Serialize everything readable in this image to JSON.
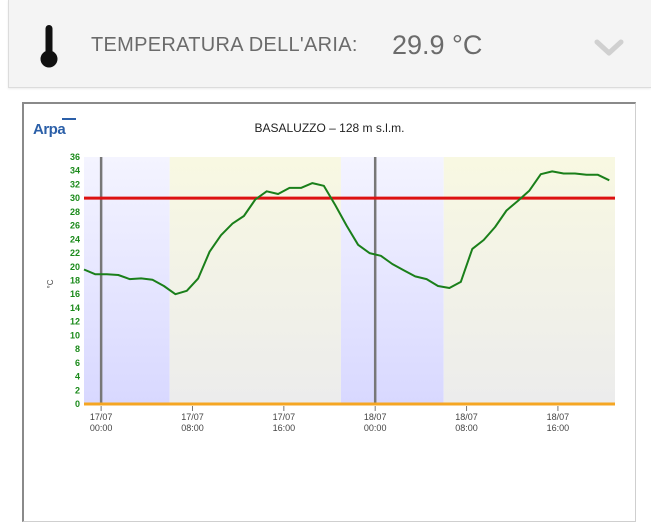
{
  "header": {
    "label": "TEMPERATURA DELL'ARIA:",
    "value": "29.9 °C",
    "thermometer_icon": "thermometer-icon",
    "expand_icon": "chevron-down-icon"
  },
  "logo": {
    "text": "Arpa"
  },
  "chart_data": {
    "type": "line",
    "title": "BASALUZZO – 128 m s.l.m.",
    "ylabel": "°C",
    "xlabel": "",
    "ylim": [
      0,
      36
    ],
    "yticks": [
      0,
      2,
      4,
      6,
      8,
      10,
      12,
      14,
      16,
      18,
      20,
      22,
      24,
      26,
      28,
      30,
      32,
      34,
      36
    ],
    "xlim": [
      -1.5,
      45
    ],
    "xticks": [
      {
        "x": 0,
        "line1": "17/07",
        "line2": "00:00"
      },
      {
        "x": 8,
        "line1": "17/07",
        "line2": "08:00"
      },
      {
        "x": 16,
        "line1": "17/07",
        "line2": "16:00"
      },
      {
        "x": 24,
        "line1": "18/07",
        "line2": "00:00"
      },
      {
        "x": 32,
        "line1": "18/07",
        "line2": "08:00"
      },
      {
        "x": 40,
        "line1": "18/07",
        "line2": "16:00"
      }
    ],
    "threshold": 30,
    "day_separators": [
      0,
      24
    ],
    "bands": [
      {
        "from": -1.5,
        "to": 6,
        "kind": "night"
      },
      {
        "from": 6,
        "to": 21,
        "kind": "day"
      },
      {
        "from": 21,
        "to": 30,
        "kind": "night"
      },
      {
        "from": 30,
        "to": 45,
        "kind": "day"
      }
    ],
    "series": [
      {
        "name": "",
        "x": [
          -1.5,
          -0.5,
          0.5,
          1.5,
          2.5,
          3.5,
          4.5,
          5.5,
          6.5,
          7.5,
          8.5,
          9.5,
          10.5,
          11.5,
          12.5,
          13.5,
          14.5,
          15.5,
          16.5,
          17.5,
          18.5,
          19.5,
          20.5,
          21.5,
          22.5,
          23.5,
          24.5,
          25.5,
          26.5,
          27.5,
          28.5,
          29.5,
          30.5,
          31.5,
          32.5,
          33.5,
          34.5,
          35.5,
          36.5,
          37.5,
          38.5,
          39.5,
          40.5,
          41.5,
          42.5,
          43.5,
          44.5
        ],
        "y": [
          19.6,
          18.9,
          18.9,
          18.8,
          18.2,
          18.3,
          18.1,
          17.2,
          16.0,
          16.5,
          18.3,
          22.2,
          24.6,
          26.3,
          27.4,
          29.8,
          31.0,
          30.6,
          31.5,
          31.5,
          32.2,
          31.8,
          29.0,
          26.0,
          23.2,
          22.0,
          21.6,
          20.4,
          19.5,
          18.6,
          18.2,
          17.2,
          16.9,
          17.8,
          22.6,
          23.9,
          25.8,
          28.2,
          29.6,
          31.1,
          33.5,
          33.9,
          33.6,
          33.6,
          33.4,
          33.4,
          32.6
        ]
      }
    ],
    "colors": {
      "line": "#1a7f1a",
      "threshold": "#dd1111",
      "baseline": "#f5a623",
      "separator": "#777777",
      "night": "#d8d8ff",
      "day": "#f8f8e2"
    }
  }
}
